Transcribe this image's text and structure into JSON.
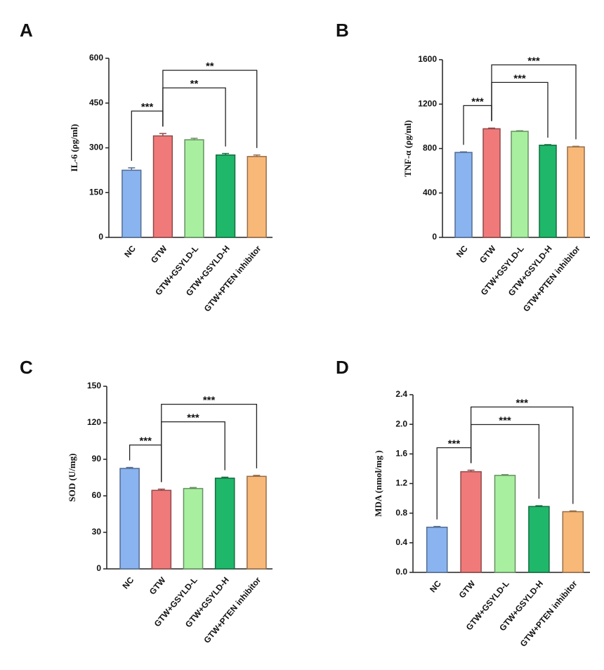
{
  "chart_data": [
    {
      "type": "bar",
      "panel": "A",
      "y_label": "IL-6 (ρg/ml)",
      "categories": [
        "NC",
        "GTW",
        "GTW+GSYLD-L",
        "GTW+GSYLD-H",
        "GTW+PTEN inhibitor"
      ],
      "values": [
        225,
        340,
        327,
        276,
        271
      ],
      "errors": [
        8,
        8,
        5,
        5,
        5
      ],
      "colors": [
        "#8ab4f0",
        "#f07a7a",
        "#a8f0a0",
        "#1fb86a",
        "#f8b878"
      ],
      "ylim": [
        0,
        600
      ],
      "yticks": [
        0,
        150,
        300,
        450,
        600
      ],
      "annotations": [
        {
          "between": [
            "NC",
            "GTW"
          ],
          "label": "***"
        },
        {
          "between": [
            "GTW",
            "GTW+GSYLD-H"
          ],
          "label": "**"
        },
        {
          "between": [
            "GTW",
            "GTW+PTEN inhibitor"
          ],
          "label": "**"
        }
      ]
    },
    {
      "type": "bar",
      "panel": "B",
      "y_label": "TNF-α (ρg/ml)",
      "categories": [
        "NC",
        "GTW",
        "GTW+GSYLD-L",
        "GTW+GSYLD-H",
        "GTW+PTEN inhibitor"
      ],
      "values": [
        765,
        978,
        955,
        830,
        815
      ],
      "errors": [
        5,
        6,
        5,
        5,
        5
      ],
      "colors": [
        "#8ab4f0",
        "#f07a7a",
        "#a8f0a0",
        "#1fb86a",
        "#f8b878"
      ],
      "ylim": [
        0,
        1600
      ],
      "yticks": [
        0,
        400,
        800,
        1200,
        1600
      ],
      "annotations": [
        {
          "between": [
            "NC",
            "GTW"
          ],
          "label": "***"
        },
        {
          "between": [
            "GTW",
            "GTW+GSYLD-H"
          ],
          "label": "***"
        },
        {
          "between": [
            "GTW",
            "GTW+PTEN inhibitor"
          ],
          "label": "***"
        }
      ]
    },
    {
      "type": "bar",
      "panel": "C",
      "y_label": "SOD (U/mg)",
      "categories": [
        "NC",
        "GTW",
        "GTW+GSYLD-L",
        "GTW+GSYLD-H",
        "GTW+PTEN inhibitor"
      ],
      "values": [
        82.5,
        64.5,
        66,
        74.5,
        76
      ],
      "errors": [
        0.8,
        1,
        0.8,
        0.8,
        0.8
      ],
      "colors": [
        "#8ab4f0",
        "#f07a7a",
        "#a8f0a0",
        "#1fb86a",
        "#f8b878"
      ],
      "ylim": [
        0,
        150
      ],
      "yticks": [
        0,
        30,
        60,
        90,
        120,
        150
      ],
      "annotations": [
        {
          "between": [
            "NC",
            "GTW"
          ],
          "label": "***"
        },
        {
          "between": [
            "GTW",
            "GTW+GSYLD-H"
          ],
          "label": "***"
        },
        {
          "between": [
            "GTW",
            "GTW+PTEN inhibitor"
          ],
          "label": "***"
        }
      ]
    },
    {
      "type": "bar",
      "panel": "D",
      "y_label": "MDA (nmol/mg )",
      "categories": [
        "NC",
        "GTW",
        "GTW+GSYLD-L",
        "GTW+GSYLD-H",
        "GTW+PTEN inhibitor"
      ],
      "values": [
        0.61,
        1.36,
        1.31,
        0.89,
        0.82
      ],
      "errors": [
        0.01,
        0.02,
        0.01,
        0.01,
        0.01
      ],
      "colors": [
        "#8ab4f0",
        "#f07a7a",
        "#a8f0a0",
        "#1fb86a",
        "#f8b878"
      ],
      "ylim": [
        0,
        2.4
      ],
      "yticks": [
        {
          "value": 0,
          "label": "0.0"
        },
        0.4,
        0.8,
        1.2,
        1.6,
        {
          "value": 2,
          "label": "2.0"
        },
        2.4
      ],
      "annotations": [
        {
          "between": [
            "NC",
            "GTW"
          ],
          "label": "***"
        },
        {
          "between": [
            "GTW",
            "GTW+GSYLD-H"
          ],
          "label": "***"
        },
        {
          "between": [
            "GTW",
            "GTW+PTEN inhibitor"
          ],
          "label": "***"
        }
      ]
    }
  ]
}
